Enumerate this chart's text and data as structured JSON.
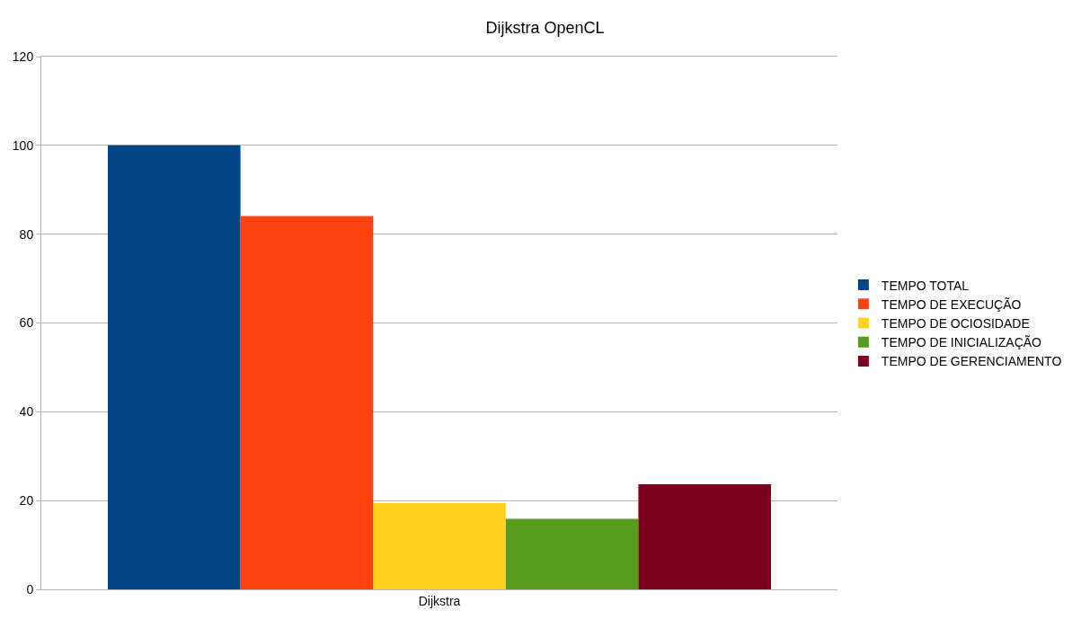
{
  "chart_data": {
    "type": "bar",
    "title": "Dijkstra OpenCL",
    "categories": [
      "Dijkstra"
    ],
    "series": [
      {
        "name": "TEMPO TOTAL",
        "color": "#004586",
        "values": [
          100
        ]
      },
      {
        "name": "TEMPO DE EXECUÇÃO",
        "color": "#ff420e",
        "values": [
          84.1
        ]
      },
      {
        "name": "TEMPO DE OCIOSIDADE",
        "color": "#ffd320",
        "values": [
          19.5
        ]
      },
      {
        "name": "TEMPO DE INICIALIZAÇÃO",
        "color": "#579d1c",
        "values": [
          15.9
        ]
      },
      {
        "name": "TEMPO DE GERENCIAMENTO",
        "color": "#7e0021",
        "values": [
          23.7
        ]
      }
    ],
    "ylim": [
      0,
      120
    ],
    "yticks": [
      0,
      20,
      40,
      60,
      80,
      100,
      120
    ],
    "grid": "y",
    "legend": "right"
  }
}
